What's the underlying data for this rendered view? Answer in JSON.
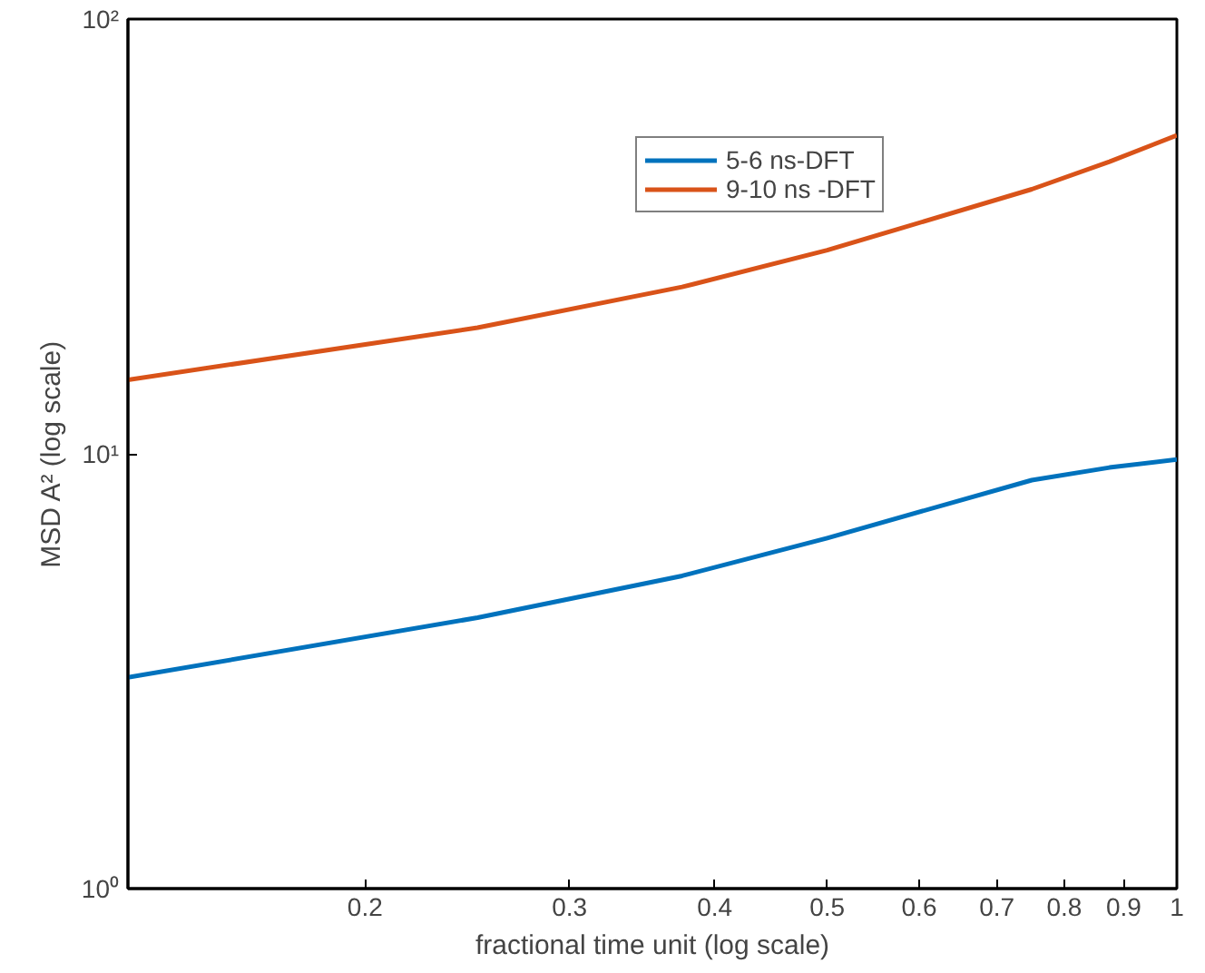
{
  "chart_data": {
    "type": "line",
    "xlabel": "fractional time unit (log scale)",
    "ylabel": "MSD A² (log scale)",
    "x": [
      0.125,
      0.25,
      0.375,
      0.5,
      0.75,
      0.875,
      1
    ],
    "series": [
      {
        "name": "5-6 ns-DFT",
        "color": "#0072bd",
        "values": [
          3.06,
          4.2,
          5.24,
          6.4,
          8.7,
          9.3,
          9.7
        ]
      },
      {
        "name": "9-10 ns -DFT",
        "color": "#d95319",
        "values": [
          14.8,
          19.5,
          24.2,
          29.4,
          40.6,
          47,
          54
        ]
      }
    ],
    "log": "xy",
    "xlim": [
      0.125,
      1
    ],
    "ylim": [
      1,
      100
    ],
    "xticks": [
      0.2,
      0.3,
      0.4,
      0.5,
      0.6,
      0.7,
      0.8,
      0.9,
      1
    ],
    "yticks": [
      {
        "value": 1,
        "label": "10⁰"
      },
      {
        "value": 10,
        "label": "10¹"
      },
      {
        "value": 100,
        "label": "10²"
      }
    ],
    "grid": false,
    "legend": "top right",
    "line_style": "solid",
    "marker": "none"
  }
}
